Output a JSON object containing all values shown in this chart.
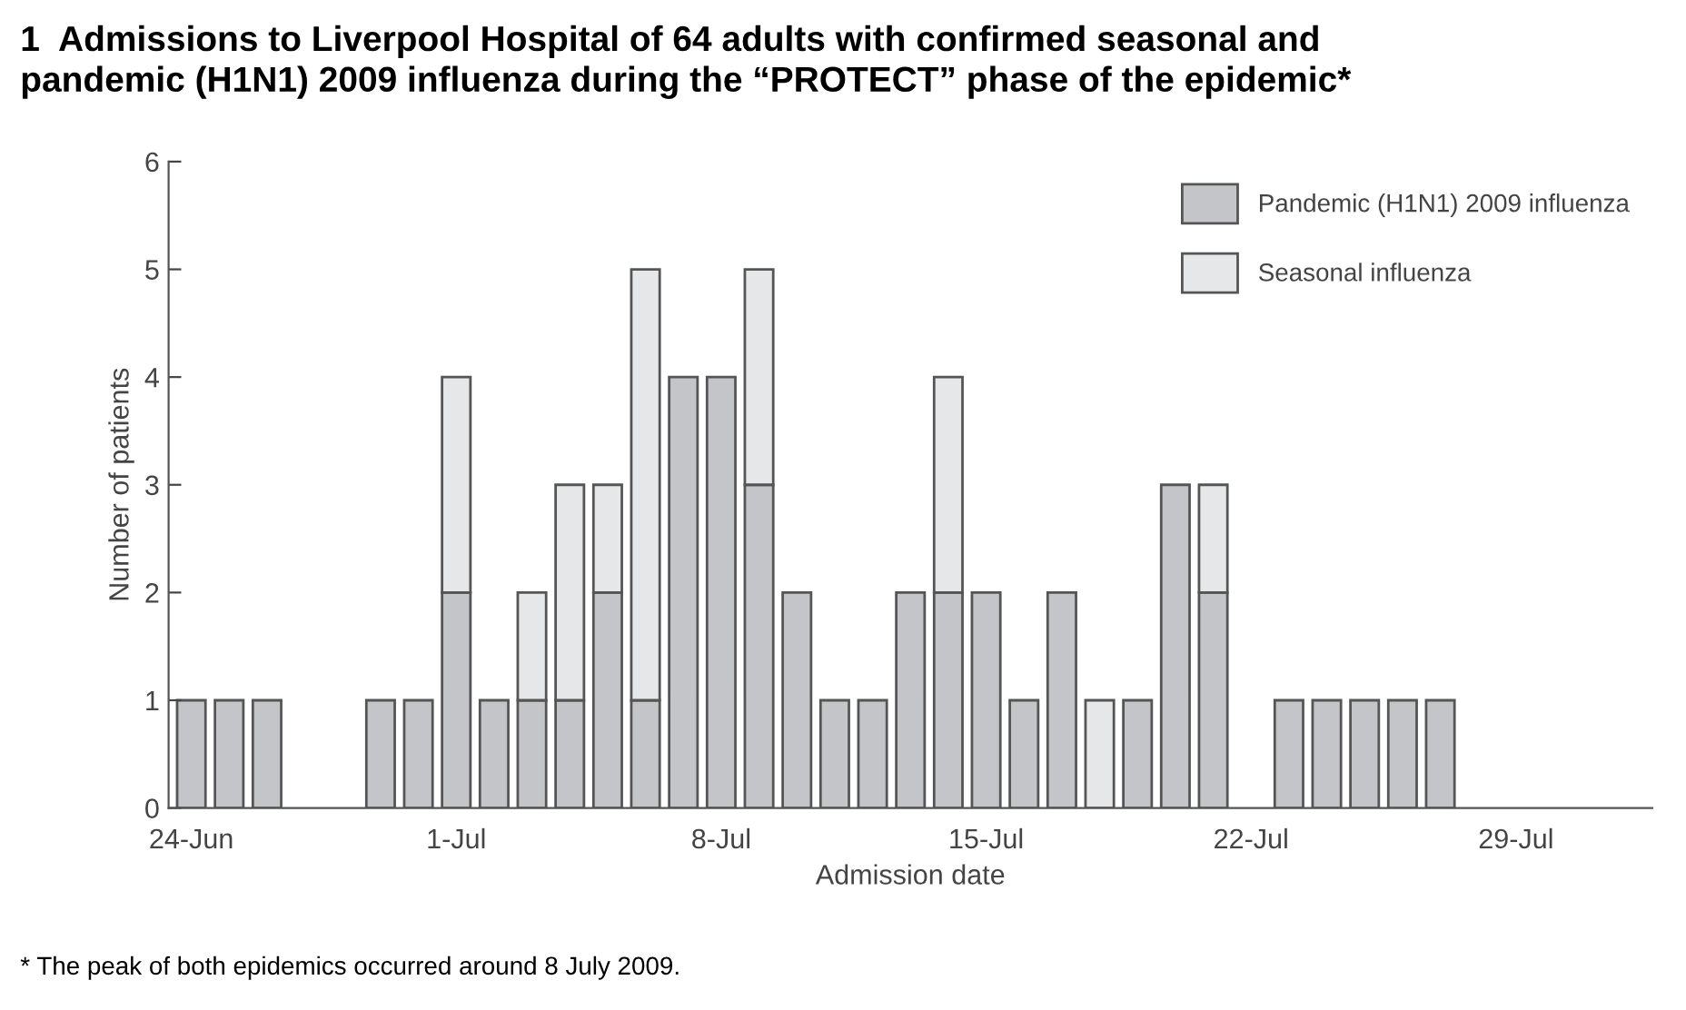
{
  "chart_data": {
    "type": "bar",
    "stacked": true,
    "title": "1  Admissions to Liverpool Hospital of 64 adults with confirmed seasonal and\npandemic (H1N1) 2009 influenza during the “PROTECT” phase of the epidemic*",
    "xlabel": "Admission date",
    "ylabel": "Number of patients",
    "categories": [
      "24-Jun",
      null,
      null,
      null,
      null,
      null,
      null,
      "1-Jul",
      null,
      null,
      null,
      null,
      null,
      null,
      "8-Jul",
      null,
      null,
      null,
      null,
      null,
      null,
      "15-Jul",
      null,
      null,
      null,
      null,
      null,
      null,
      "22-Jul",
      null,
      null,
      null,
      null,
      null,
      null,
      "29-Jul",
      null,
      null,
      null
    ],
    "series": [
      {
        "name": "Pandemic (H1N1) 2009 influenza",
        "color": "#c4c5c9",
        "values": [
          1,
          1,
          1,
          0,
          0,
          1,
          1,
          2,
          1,
          1,
          1,
          2,
          1,
          4,
          4,
          3,
          2,
          1,
          1,
          2,
          2,
          2,
          1,
          2,
          0,
          1,
          3,
          2,
          0,
          1,
          1,
          1,
          1,
          1,
          0,
          0,
          0,
          0,
          0
        ]
      },
      {
        "name": "Seasonal influenza",
        "color": "#e6e7e9",
        "values": [
          0,
          0,
          0,
          0,
          0,
          0,
          0,
          2,
          0,
          1,
          2,
          1,
          4,
          0,
          0,
          2,
          0,
          0,
          0,
          0,
          2,
          0,
          0,
          0,
          1,
          0,
          0,
          1,
          0,
          0,
          0,
          0,
          0,
          0,
          0,
          0,
          0,
          0,
          0
        ]
      }
    ],
    "ylim": [
      0,
      6
    ],
    "yticks": [
      0,
      1,
      2,
      3,
      4,
      5,
      6
    ],
    "grid": false,
    "legend": "top right",
    "annotations": [
      "* The peak of both epidemics occurred around 8 July 2009."
    ]
  }
}
